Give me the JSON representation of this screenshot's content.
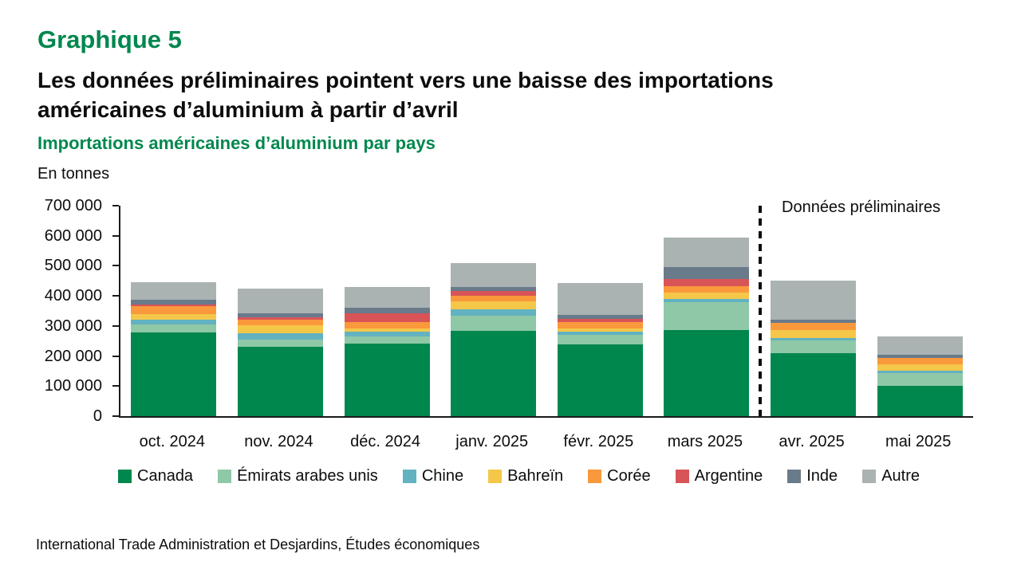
{
  "page": {
    "kicker": "Graphique 5",
    "title_line1": "Les données préliminaires pointent vers une baisse des importations",
    "title_line2": "américaines d’aluminium à partir d’avril",
    "subtitle": "Importations américaines d’aluminium par pays",
    "unit_label": "En tonnes",
    "source": "International Trade Administration et Desjardins, Études économiques"
  },
  "colors": {
    "accent_green": "#00874E",
    "axis_black": "#1a1a1a"
  },
  "chart_data": {
    "type": "bar",
    "stacked": true,
    "title": "Importations américaines d’aluminium par pays",
    "xlabel": "",
    "ylabel": "En tonnes",
    "ylim": [
      0,
      700000
    ],
    "ytick_step": 100000,
    "grid": false,
    "legend_position": "bottom",
    "categories": [
      "oct. 2024",
      "nov. 2024",
      "déc. 2024",
      "janv. 2025",
      "févr. 2025",
      "mars 2025",
      "avr. 2025",
      "mai 2025"
    ],
    "series": [
      {
        "name": "Canada",
        "color": "#00874E",
        "values": [
          278000,
          231000,
          242000,
          284000,
          240000,
          286000,
          209000,
          100000
        ]
      },
      {
        "name": "Émirats arabes unis",
        "color": "#8FC8A6",
        "values": [
          26000,
          24000,
          22000,
          50000,
          31000,
          94000,
          44000,
          44000
        ]
      },
      {
        "name": "Chine",
        "color": "#62B2C1",
        "values": [
          16000,
          20000,
          16000,
          21000,
          11000,
          9000,
          7000,
          6000
        ]
      },
      {
        "name": "Bahreïn",
        "color": "#F4C749",
        "values": [
          20000,
          27000,
          13000,
          26000,
          9000,
          22000,
          26000,
          22000
        ]
      },
      {
        "name": "Corée",
        "color": "#F9993B",
        "values": [
          25000,
          18000,
          20000,
          20000,
          22000,
          22000,
          23000,
          22000
        ]
      },
      {
        "name": "Argentine",
        "color": "#D95457",
        "values": [
          5000,
          9000,
          29000,
          15000,
          11000,
          22000,
          0,
          0
        ]
      },
      {
        "name": "Inde",
        "color": "#697A8A",
        "values": [
          16000,
          13000,
          19000,
          14000,
          13000,
          42000,
          12000,
          11000
        ]
      },
      {
        "name": "Autre",
        "color": "#AAB3B2",
        "values": [
          59000,
          82000,
          69000,
          80000,
          106000,
          98000,
          129000,
          60000
        ]
      }
    ],
    "totals": [
      445000,
      424000,
      430000,
      510000,
      443000,
      595000,
      450000,
      265000
    ],
    "divider": {
      "after_category": "mars 2025",
      "label": "Données préliminaires",
      "style": "dashed"
    }
  }
}
